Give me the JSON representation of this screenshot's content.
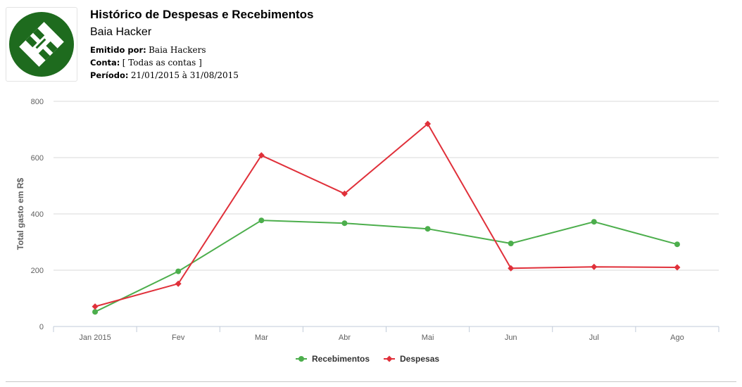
{
  "header": {
    "title": "Histórico de Despesas e Recebimentos",
    "subtitle": "Baia Hacker",
    "issued_by_label": "Emitido por:",
    "issued_by_value": "Baia Hackers",
    "account_label": "Conta:",
    "account_value": "[ Todas as contas ]",
    "period_label": "Período:",
    "period_value": "21/01/2015 à 31/08/2015"
  },
  "logo": {
    "icon": "baia-hacker-logo",
    "color": "#1e6b1e"
  },
  "chart_data": {
    "type": "line",
    "title": "",
    "xlabel": "",
    "ylabel": "Total gasto em R$",
    "ylim": [
      0,
      800
    ],
    "yticks": [
      0,
      200,
      400,
      600,
      800
    ],
    "categories": [
      "Jan 2015",
      "Fev",
      "Mar",
      "Abr",
      "Mai",
      "Jun",
      "Jul",
      "Ago"
    ],
    "grid": true,
    "legend": "bottom-center",
    "series": [
      {
        "name": "Recebimentos",
        "color": "#4cae4c",
        "marker": "circle",
        "values": [
          52,
          196,
          377,
          367,
          347,
          295,
          372,
          292
        ]
      },
      {
        "name": "Despesas",
        "color": "#e0303a",
        "marker": "diamond",
        "values": [
          71,
          152,
          608,
          472,
          720,
          207,
          212,
          210
        ]
      }
    ]
  }
}
